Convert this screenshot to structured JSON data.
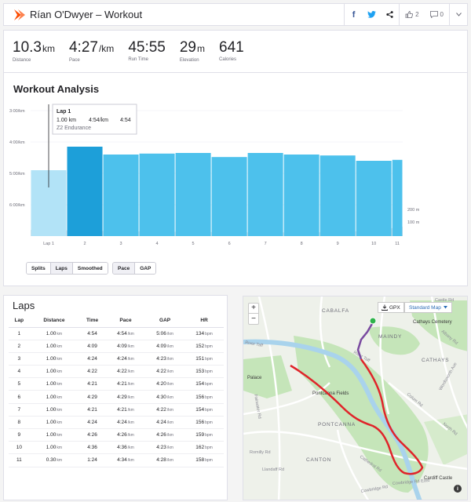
{
  "header": {
    "title": "Rían O'Dwyer – Workout",
    "kudos_count": "2",
    "comments_count": "0"
  },
  "stats": [
    {
      "value": "10.3",
      "unit": "km",
      "label": "Distance"
    },
    {
      "value": "4:27",
      "unit": "/km",
      "label": "Pace"
    },
    {
      "value": "45:55",
      "unit": "",
      "label": "Run Time"
    },
    {
      "value": "29",
      "unit": "m",
      "label": "Elevation"
    },
    {
      "value": "641",
      "unit": "",
      "label": "Calories"
    }
  ],
  "analysis": {
    "title": "Workout Analysis",
    "tooltip": {
      "lap": "Lap 1",
      "dist": "1.00 km",
      "pace": "4:54/km",
      "gap": "4:54",
      "zone": "Z2 Endurance"
    },
    "controls_a": [
      "Splits",
      "Laps",
      "Smoothed"
    ],
    "controls_b": [
      "Pace",
      "GAP"
    ]
  },
  "chart_data": {
    "type": "bar",
    "categories": [
      "Lap 1",
      "2",
      "3",
      "4",
      "5",
      "6",
      "7",
      "8",
      "9",
      "10",
      "11"
    ],
    "series": [
      {
        "values": [
          4.9,
          4.15,
          4.4,
          4.37,
          4.35,
          4.48,
          4.35,
          4.4,
          4.43,
          4.6,
          4.57
        ]
      }
    ],
    "yticks": [
      "3:00/km",
      "4:00/km",
      "5:00/km",
      "6:00/km"
    ],
    "elevation_ticks": [
      "200 m",
      "100 m"
    ],
    "ylabel": "",
    "xlabel": "",
    "highlight_index": 0,
    "colors": {
      "bar": "#4dc1ec",
      "bar_highlight": "#b2e3f7",
      "bar_selected": "#1d9fd9",
      "elevation": "#e3e3e6"
    }
  },
  "laps": {
    "title": "Laps",
    "headers": [
      "Lap",
      "Distance",
      "Time",
      "Pace",
      "GAP",
      "HR"
    ],
    "rows": [
      {
        "lap": "1",
        "dist": "1.00",
        "time": "4:54",
        "pace": "4:54",
        "gap": "5:06",
        "hr": "134"
      },
      {
        "lap": "2",
        "dist": "1.00",
        "time": "4:09",
        "pace": "4:09",
        "gap": "4:09",
        "hr": "152"
      },
      {
        "lap": "3",
        "dist": "1.00",
        "time": "4:24",
        "pace": "4:24",
        "gap": "4:23",
        "hr": "151"
      },
      {
        "lap": "4",
        "dist": "1.00",
        "time": "4:22",
        "pace": "4:22",
        "gap": "4:22",
        "hr": "153"
      },
      {
        "lap": "5",
        "dist": "1.00",
        "time": "4:21",
        "pace": "4:21",
        "gap": "4:20",
        "hr": "154"
      },
      {
        "lap": "6",
        "dist": "1.00",
        "time": "4:29",
        "pace": "4:29",
        "gap": "4:30",
        "hr": "156"
      },
      {
        "lap": "7",
        "dist": "1.00",
        "time": "4:21",
        "pace": "4:21",
        "gap": "4:22",
        "hr": "154"
      },
      {
        "lap": "8",
        "dist": "1.00",
        "time": "4:24",
        "pace": "4:24",
        "gap": "4:24",
        "hr": "156"
      },
      {
        "lap": "9",
        "dist": "1.00",
        "time": "4:26",
        "pace": "4:26",
        "gap": "4:26",
        "hr": "159"
      },
      {
        "lap": "10",
        "dist": "1.00",
        "time": "4:36",
        "pace": "4:36",
        "gap": "4:23",
        "hr": "162"
      },
      {
        "lap": "11",
        "dist": "0.30",
        "time": "1:24",
        "pace": "4:34",
        "gap": "4:28",
        "hr": "158"
      }
    ],
    "units": {
      "dist": "km",
      "pace": "/km",
      "hr": "bpm"
    }
  },
  "map": {
    "gpx_label": "GPX",
    "style_label": "Standard Map",
    "labels": {
      "cabalfa": "CABALFA",
      "cathays_cem": "Cathays Cemetery",
      "maindy": "MAINDY",
      "cathays": "CATHAYS",
      "pontcanna_fields": "Pontcanna Fields",
      "palace": "Palace",
      "pontcanna": "PONTCANNA",
      "canton": "CANTON",
      "cardiff_castle": "Cardiff Castle",
      "taff": "River Taff",
      "cathedral": "Cathedral Rd",
      "colum": "Colum Rd",
      "fairwater": "Fairwater Rd",
      "romilly": "Romilly Rd",
      "cowbridge": "Cowbridge Rd",
      "wordsworth": "Wordsworth Ave",
      "north": "North Rd",
      "albany": "Albany Rd",
      "castle": "Castle Rd",
      "llandaff": "Llandaff Rd",
      "taff2": "River Taff",
      "cowbridge_east": "Cowbridge Rd East"
    },
    "colors": {
      "route": "#e0242a",
      "route_start": "#7a4aa0",
      "start": "#2eb34a",
      "park": "#c5e5b9",
      "river": "#a9d3ec"
    }
  }
}
